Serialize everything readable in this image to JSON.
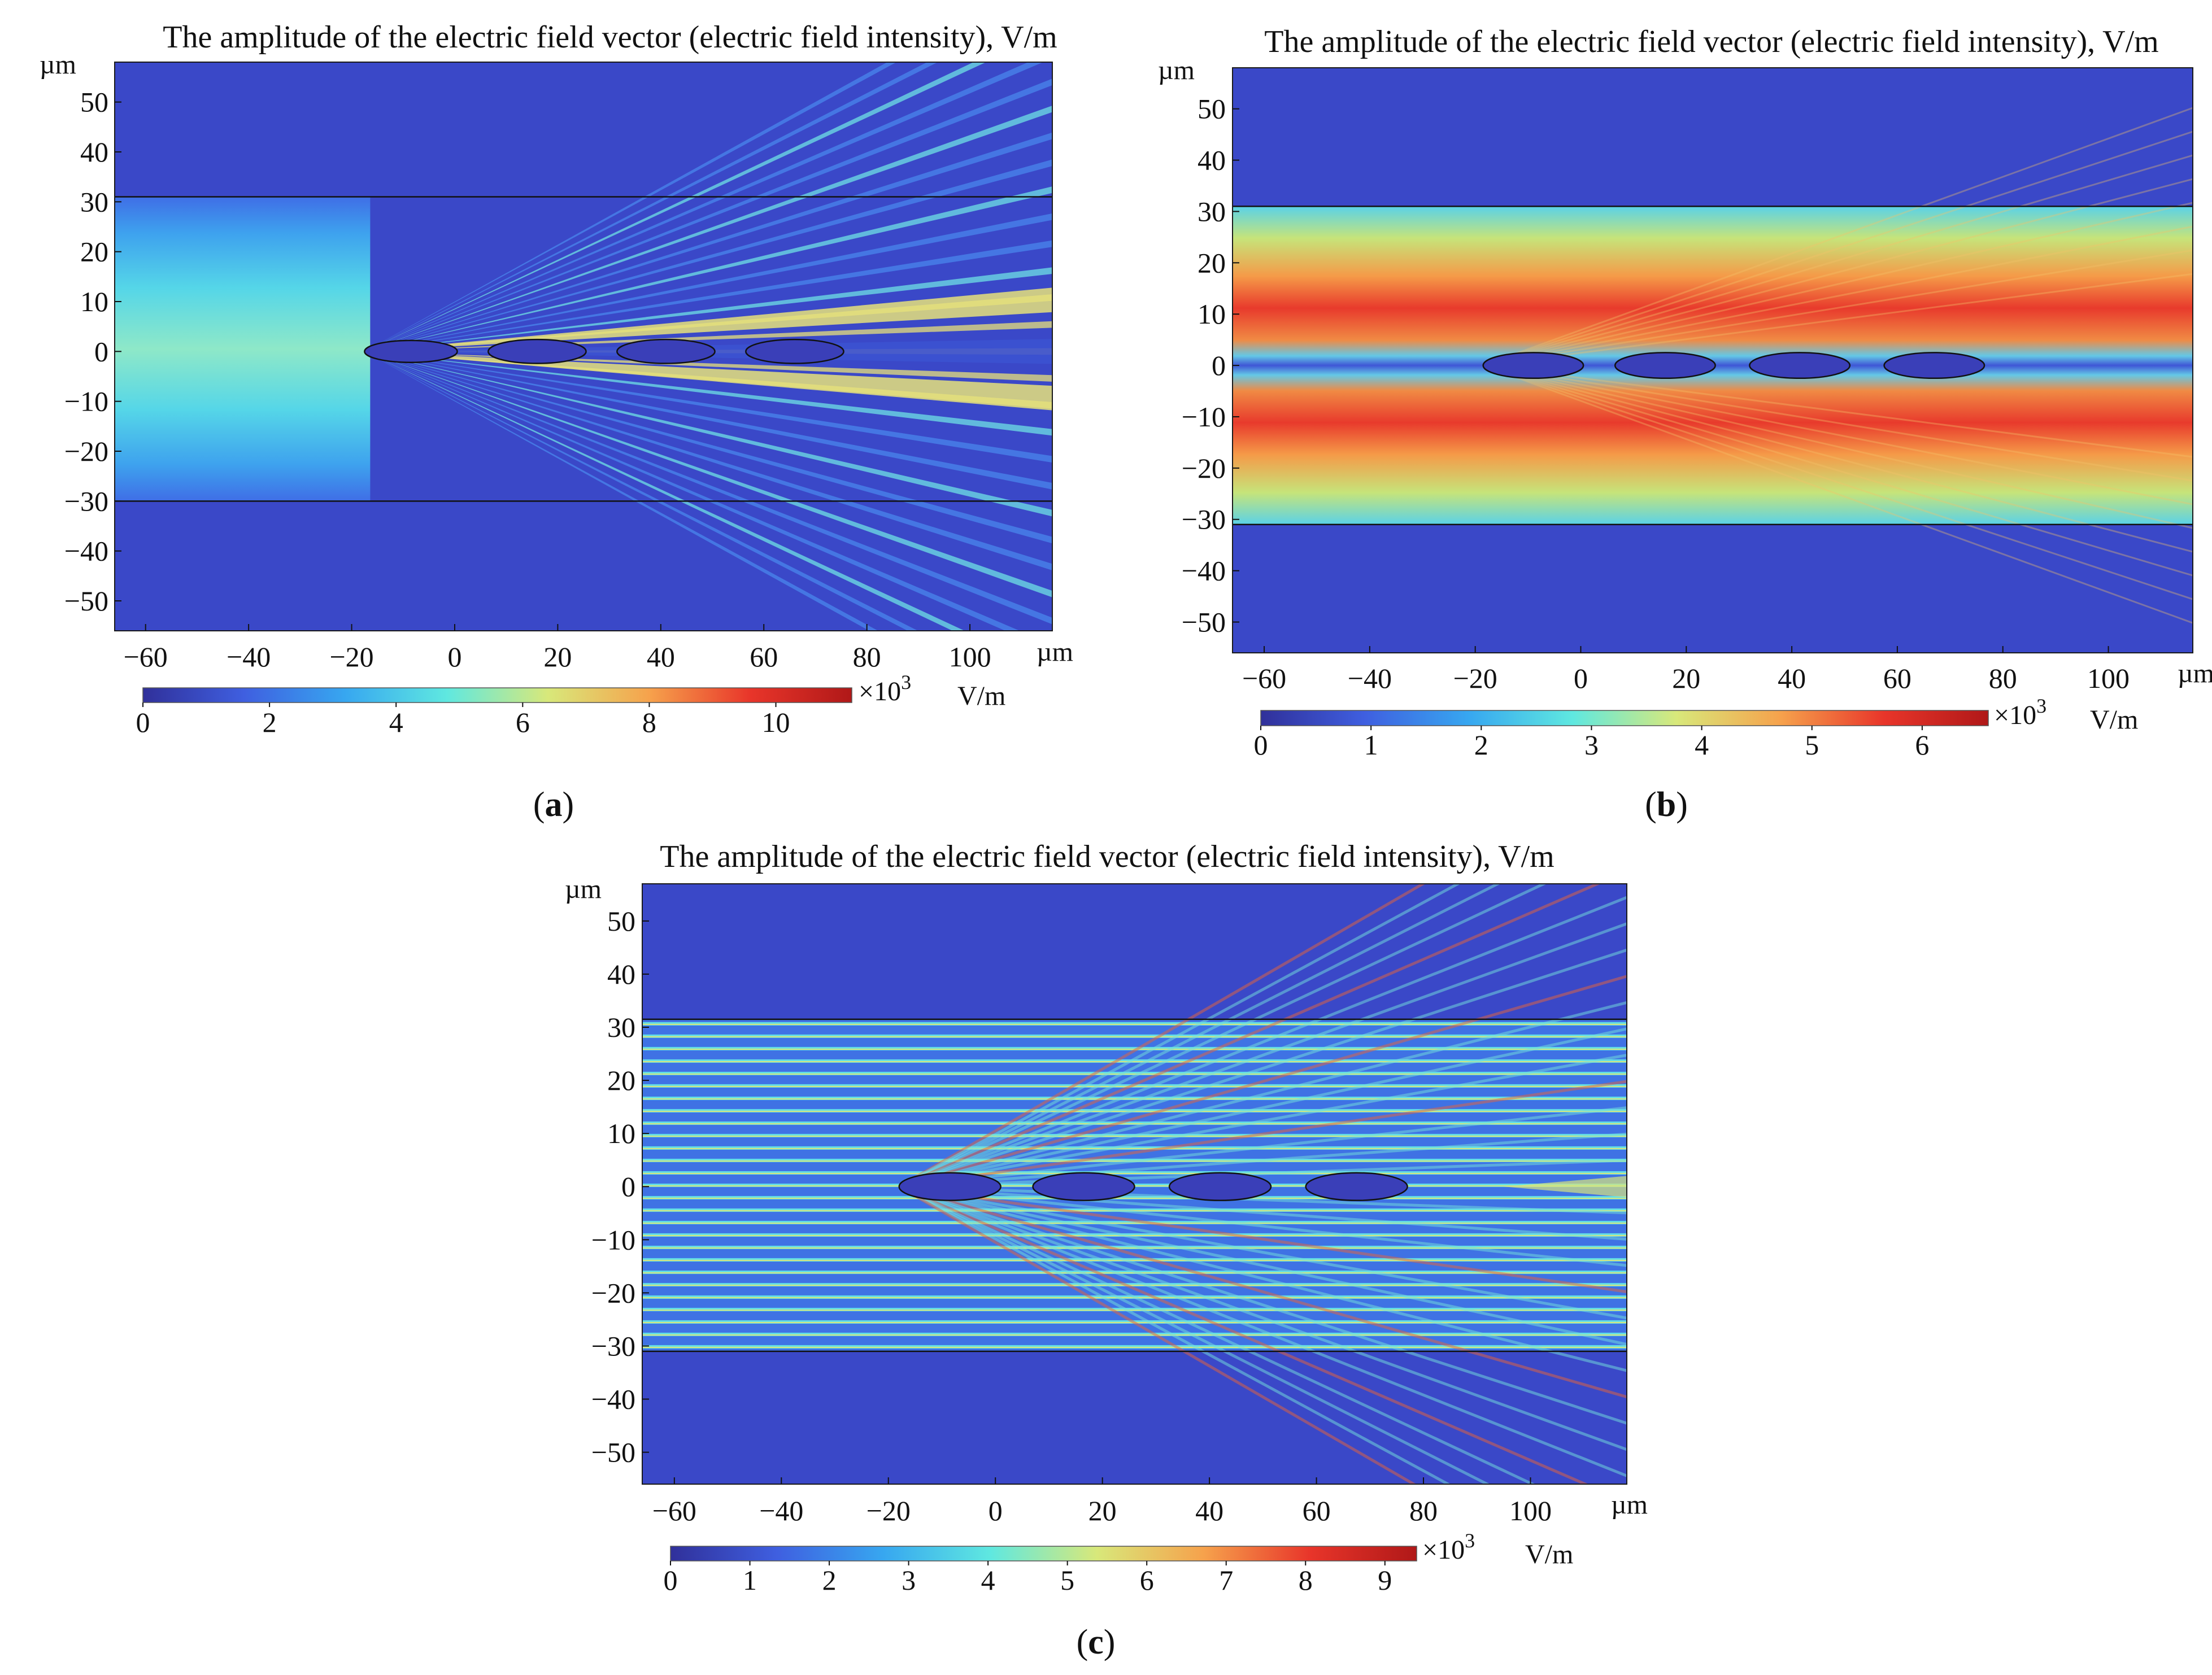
{
  "figure_title": "The amplitude of the electric field vector (electric field intensity), V/m",
  "colors": {
    "jet": [
      "#30309a",
      "#3f5fe0",
      "#37a7f0",
      "#5fe8e0",
      "#d8e87a",
      "#f6a24c",
      "#e8352a",
      "#b01818"
    ],
    "background": "#3a4ccc",
    "frame": "#1a1a1a"
  },
  "chart_data": [
    {
      "type": "heatmap",
      "panel_label": "a",
      "title": "The amplitude of the electric field vector (electric field intensity), V/m",
      "x_unit": "µm",
      "y_unit": "µm",
      "xlim": [
        -66,
        116
      ],
      "ylim": [
        -56,
        58
      ],
      "x_ticks": [
        -60,
        -40,
        -20,
        0,
        20,
        40,
        60,
        80,
        100
      ],
      "y_ticks": [
        50,
        40,
        30,
        20,
        10,
        0,
        -10,
        -20,
        -30,
        -40,
        -50
      ],
      "x_tick_labels": [
        "−60",
        "−40",
        "−20",
        "0",
        "20",
        "40",
        "60",
        "80",
        "100"
      ],
      "y_tick_labels": [
        "50",
        "40",
        "30",
        "20",
        "10",
        "0",
        "−10",
        "−20",
        "−30",
        "−40",
        "−50"
      ],
      "waveguide_boundaries_y": [
        31,
        -30
      ],
      "ellipses": [
        {
          "cx": -8.5,
          "cy": 0,
          "rx": 9,
          "ry": 2.2
        },
        {
          "cx": 16,
          "cy": 0,
          "rx": 9.5,
          "ry": 2.4
        },
        {
          "cx": 41,
          "cy": 0,
          "rx": 9.5,
          "ry": 2.4
        },
        {
          "cx": 66,
          "cy": 0,
          "rx": 9.5,
          "ry": 2.4
        }
      ],
      "pattern": "fan-out",
      "colorbar": {
        "min": 0,
        "max": 11.2,
        "ticks": [
          0,
          2,
          4,
          6,
          8,
          10
        ],
        "tick_labels": [
          "0",
          "2",
          "4",
          "6",
          "8",
          "10"
        ],
        "multiplier": "×10",
        "exponent": "3",
        "unit": "V/m"
      }
    },
    {
      "type": "heatmap",
      "panel_label": "b",
      "title": "The amplitude of the electric field vector (electric field intensity), V/m",
      "x_unit": "µm",
      "y_unit": "µm",
      "xlim": [
        -66,
        116
      ],
      "ylim": [
        -56,
        58
      ],
      "x_ticks": [
        -60,
        -40,
        -20,
        0,
        20,
        40,
        60,
        80,
        100
      ],
      "y_ticks": [
        50,
        40,
        30,
        20,
        10,
        0,
        -10,
        -20,
        -30,
        -40,
        -50
      ],
      "x_tick_labels": [
        "−60",
        "−40",
        "−20",
        "0",
        "20",
        "40",
        "60",
        "80",
        "100"
      ],
      "y_tick_labels": [
        "50",
        "40",
        "30",
        "20",
        "10",
        "0",
        "−10",
        "−20",
        "−30",
        "−40",
        "−50"
      ],
      "waveguide_boundaries_y": [
        31,
        -31
      ],
      "ellipses": [
        {
          "cx": -9,
          "cy": 0,
          "rx": 9.5,
          "ry": 2.5
        },
        {
          "cx": 16,
          "cy": 0,
          "rx": 9.5,
          "ry": 2.5
        },
        {
          "cx": 41.5,
          "cy": 0,
          "rx": 9.5,
          "ry": 2.5
        },
        {
          "cx": 67,
          "cy": 0,
          "rx": 9.5,
          "ry": 2.5
        }
      ],
      "pattern": "two-lobe",
      "colorbar": {
        "min": 0,
        "max": 6.6,
        "ticks": [
          0,
          1,
          2,
          3,
          4,
          5,
          6
        ],
        "tick_labels": [
          "0",
          "1",
          "2",
          "3",
          "4",
          "5",
          "6"
        ],
        "multiplier": "×10",
        "exponent": "3",
        "unit": "V/m"
      }
    },
    {
      "type": "heatmap",
      "panel_label": "c",
      "title": "The amplitude of the electric field vector (electric field intensity), V/m",
      "x_unit": "µm",
      "y_unit": "µm",
      "xlim": [
        -66,
        118
      ],
      "ylim": [
        -56,
        57
      ],
      "x_ticks": [
        -60,
        -40,
        -20,
        0,
        20,
        40,
        60,
        80,
        100
      ],
      "y_ticks": [
        50,
        40,
        30,
        20,
        10,
        0,
        -10,
        -20,
        -30,
        -40,
        -50
      ],
      "x_tick_labels": [
        "−60",
        "−40",
        "−20",
        "0",
        "20",
        "40",
        "60",
        "80",
        "100"
      ],
      "y_tick_labels": [
        "50",
        "40",
        "30",
        "20",
        "10",
        "0",
        "−10",
        "−20",
        "−30",
        "−40",
        "−50"
      ],
      "waveguide_boundaries_y": [
        31.5,
        -31
      ],
      "ellipses": [
        {
          "cx": -8.5,
          "cy": 0,
          "rx": 9.5,
          "ry": 2.6
        },
        {
          "cx": 16.5,
          "cy": 0,
          "rx": 9.5,
          "ry": 2.6
        },
        {
          "cx": 42,
          "cy": 0,
          "rx": 9.5,
          "ry": 2.6
        },
        {
          "cx": 67.5,
          "cy": 0,
          "rx": 9.5,
          "ry": 2.6
        }
      ],
      "pattern": "striped",
      "colorbar": {
        "min": 0,
        "max": 9.4,
        "ticks": [
          0,
          1,
          2,
          3,
          4,
          5,
          6,
          7,
          8,
          9
        ],
        "tick_labels": [
          "0",
          "1",
          "2",
          "3",
          "4",
          "5",
          "6",
          "7",
          "8",
          "9"
        ],
        "multiplier": "×10",
        "exponent": "3",
        "unit": "V/m"
      }
    }
  ]
}
